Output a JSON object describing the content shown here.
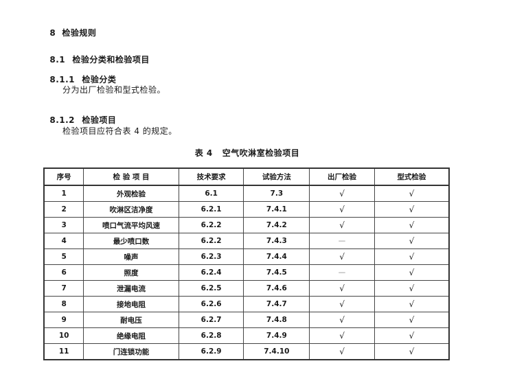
{
  "sections": [
    {
      "number": "8",
      "title": "检验规则"
    },
    {
      "number": "8.1",
      "title": "检验分类和检验项目"
    },
    {
      "number": "8.1.1",
      "title": "检验分类"
    },
    {
      "text": "分为出厂检验和型式检验。"
    },
    {
      "number": "8.1.2",
      "title": "检验项目"
    },
    {
      "text": "检验项目应符合表 4 的规定。"
    }
  ],
  "table": {
    "caption": "表 4   空气吹淋室检验项目",
    "headers": [
      "序号",
      "检 验 项 目",
      "技术要求",
      "试验方法",
      "出厂检验",
      "型式检验"
    ],
    "rows": [
      [
        "1",
        "外观检验",
        "6.1",
        "7.3",
        "√",
        "√"
      ],
      [
        "2",
        "吹淋区洁净度",
        "6.2.1",
        "7.4.1",
        "√",
        "√"
      ],
      [
        "3",
        "喷口气流平均风速",
        "6.2.2",
        "7.4.2",
        "√",
        "√"
      ],
      [
        "4",
        "最少喷口数",
        "6.2.2",
        "7.4.3",
        "—",
        "√"
      ],
      [
        "5",
        "噪声",
        "6.2.3",
        "7.4.4",
        "√",
        "√"
      ],
      [
        "6",
        "照度",
        "6.2.4",
        "7.4.5",
        "—",
        "√"
      ],
      [
        "7",
        "泄漏电流",
        "6.2.5",
        "7.4.6",
        "√",
        "√"
      ],
      [
        "8",
        "接地电阻",
        "6.2.6",
        "7.4.7",
        "√",
        "√"
      ],
      [
        "9",
        "耐电压",
        "6.2.7",
        "7.4.8",
        "√",
        "√"
      ],
      [
        "10",
        "绝缘电阻",
        "6.2.8",
        "7.4.9",
        "√",
        "√"
      ],
      [
        "11",
        "门连锁功能",
        "6.2.9",
        "7.4.10",
        "√",
        "√"
      ]
    ]
  }
}
